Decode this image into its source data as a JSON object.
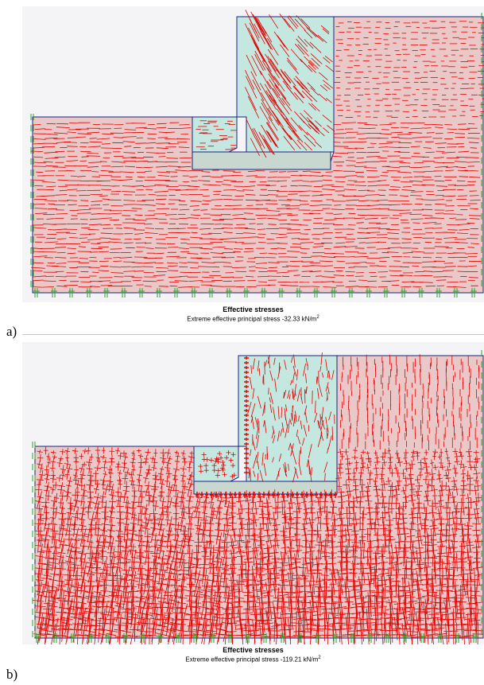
{
  "panels": [
    {
      "letter": "a)",
      "title": "Effective stresses",
      "subtitle_prefix": "Extreme effective principal stress ",
      "value": "-32.33",
      "unit_base": "kN/m",
      "unit_sup": "2"
    },
    {
      "letter": "b)",
      "title": "Effective stresses",
      "subtitle_prefix": "Extreme effective principal stress ",
      "value": "-119.21",
      "unit_base": "kN/m",
      "unit_sup": "2"
    }
  ],
  "colors": {
    "soil": "#eac8c8",
    "wall": "#c4e8df",
    "base": "#c8d8d0",
    "outline": "#1a237e",
    "stress": "#e00000",
    "fixity": "#2ea02e",
    "background": "#f4f4f7"
  }
}
